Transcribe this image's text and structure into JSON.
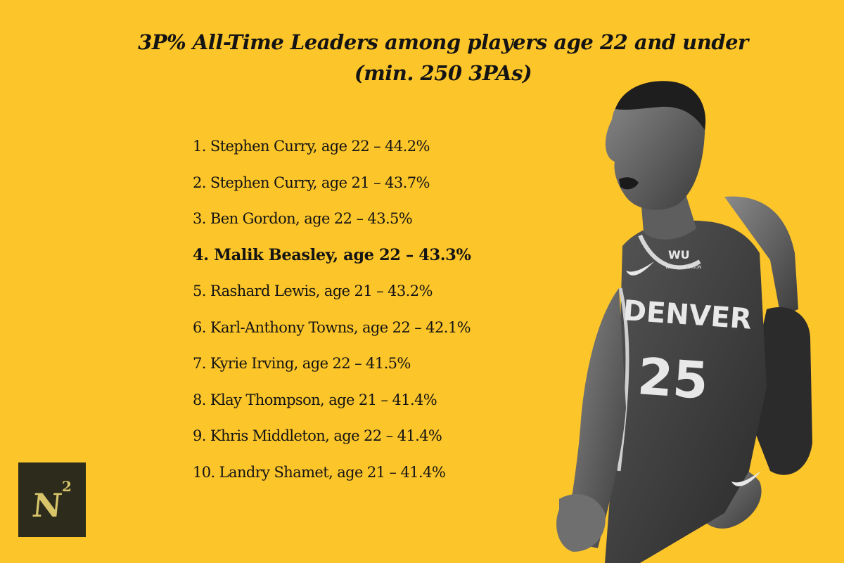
{
  "title": {
    "line1": "3P% All-Time Leaders among players age 22 and under",
    "line2": "(min. 250 3PAs)"
  },
  "leaders": [
    {
      "text": "1. Stephen Curry, age 22 – 44.2%",
      "highlight": false
    },
    {
      "text": "2. Stephen Curry, age 21 – 43.7%",
      "highlight": false
    },
    {
      "text": "3. Ben Gordon, age 22 – 43.5%",
      "highlight": false
    },
    {
      "text": "4. Malik Beasley, age 22 – 43.3%",
      "highlight": true
    },
    {
      "text": "5. Rashard Lewis, age 21 – 43.2%",
      "highlight": false
    },
    {
      "text": "6. Karl-Anthony Towns, age 22 – 42.1%",
      "highlight": false
    },
    {
      "text": "7. Kyrie Irving, age 22 – 41.5%",
      "highlight": false
    },
    {
      "text": "8. Klay Thompson, age 21 – 41.4%",
      "highlight": false
    },
    {
      "text": "9. Khris Middleton, age 22 – 41.4%",
      "highlight": false
    },
    {
      "text": "10. Landry Shamet, age 21 – 41.4%",
      "highlight": false
    }
  ],
  "logo": {
    "letter": "N",
    "superscript": "2"
  },
  "player": {
    "jersey_text": "DENVER",
    "jersey_number": "25",
    "sponsor": "WU",
    "sponsor_sub": "WESTERN UNION"
  },
  "colors": {
    "background": "#fcc52a",
    "text": "#141414",
    "logo_bg": "#2d2b1c",
    "logo_fg": "#d8c56a"
  }
}
